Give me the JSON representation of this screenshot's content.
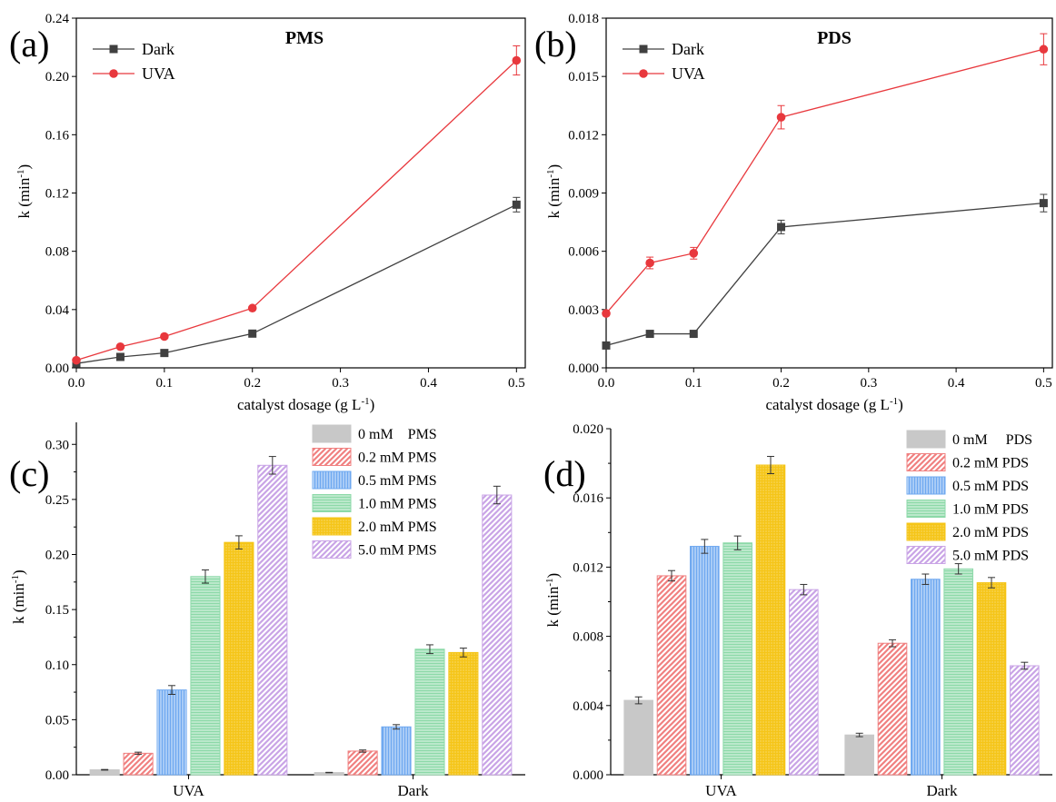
{
  "chart_data": [
    {
      "id": "a",
      "type": "line",
      "panel_label": "(a)",
      "title": "PMS",
      "xlabel": "catalyst dosage (g L",
      "xlabel_sup": "-1",
      "xlabel_end": ")",
      "ylabel": "k (min",
      "ylabel_sup": "-1",
      "ylabel_end": ")",
      "xlim": [
        0,
        0.51
      ],
      "ylim": [
        0,
        0.24
      ],
      "xticks": [
        0.0,
        0.1,
        0.2,
        0.3,
        0.4,
        0.5
      ],
      "xtick_labels": [
        "0.0",
        "0.1",
        "0.2",
        "0.3",
        "0.4",
        "0.5"
      ],
      "yticks": [
        0.0,
        0.04,
        0.08,
        0.12,
        0.16,
        0.2,
        0.24
      ],
      "ytick_labels": [
        "0.00",
        "0.04",
        "0.08",
        "0.12",
        "0.16",
        "0.20",
        "0.24"
      ],
      "legend_position": "top-left",
      "series": [
        {
          "name": "Dark",
          "color": "#404040",
          "marker": "square",
          "x": [
            0,
            0.05,
            0.1,
            0.2,
            0.5
          ],
          "y": [
            0.003,
            0.0075,
            0.0102,
            0.0235,
            0.112
          ],
          "err": [
            0.0004,
            0.0005,
            0.0006,
            0.0012,
            0.005
          ]
        },
        {
          "name": "UVA",
          "color": "#e8383d",
          "marker": "circle",
          "x": [
            0,
            0.05,
            0.1,
            0.2,
            0.5
          ],
          "y": [
            0.0052,
            0.0145,
            0.0215,
            0.041,
            0.211
          ],
          "err": [
            0.0004,
            0.0006,
            0.0007,
            0.0012,
            0.01
          ]
        }
      ]
    },
    {
      "id": "b",
      "type": "line",
      "panel_label": "(b)",
      "title": "PDS",
      "xlabel": "catalyst dosage (g L",
      "xlabel_sup": "-1",
      "xlabel_end": ")",
      "ylabel": "k (min",
      "ylabel_sup": "-1",
      "ylabel_end": ")",
      "xlim": [
        0,
        0.51
      ],
      "ylim": [
        0,
        0.018
      ],
      "xticks": [
        0.0,
        0.1,
        0.2,
        0.3,
        0.4,
        0.5
      ],
      "xtick_labels": [
        "0.0",
        "0.1",
        "0.2",
        "0.3",
        "0.4",
        "0.5"
      ],
      "yticks": [
        0.0,
        0.003,
        0.006,
        0.009,
        0.012,
        0.015,
        0.018
      ],
      "ytick_labels": [
        "0.000",
        "0.003",
        "0.006",
        "0.009",
        "0.012",
        "0.015",
        "0.018"
      ],
      "legend_position": "top-left",
      "series": [
        {
          "name": "Dark",
          "color": "#404040",
          "marker": "square",
          "x": [
            0,
            0.05,
            0.1,
            0.2,
            0.5
          ],
          "y": [
            0.00115,
            0.00175,
            0.00175,
            0.00725,
            0.00848
          ],
          "err": [
            8e-05,
            0.0001,
            0.0001,
            0.00035,
            0.00045
          ]
        },
        {
          "name": "UVA",
          "color": "#e8383d",
          "marker": "circle",
          "x": [
            0,
            0.05,
            0.1,
            0.2,
            0.5
          ],
          "y": [
            0.0028,
            0.0054,
            0.0059,
            0.0129,
            0.0164
          ],
          "err": [
            0.00012,
            0.0003,
            0.0003,
            0.0006,
            0.0008
          ]
        }
      ]
    },
    {
      "id": "c",
      "type": "bar",
      "panel_label": "(c)",
      "ylabel": "k (min",
      "ylabel_sup": "-1",
      "ylabel_end": ")",
      "ylim": [
        0,
        0.32
      ],
      "yticks": [
        0.0,
        0.05,
        0.1,
        0.15,
        0.2,
        0.25,
        0.3
      ],
      "ytick_labels": [
        "0.00",
        "0.05",
        "0.10",
        "0.15",
        "0.20",
        "0.25",
        "0.30"
      ],
      "categories": [
        "UVA",
        "Dark"
      ],
      "legend_position": "top-right",
      "series": [
        {
          "name": "0 mM    PMS",
          "color": "#c8c8c8",
          "pattern": "solid",
          "values": [
            0.0045,
            0.002
          ],
          "err": [
            0.0003,
            0.0002
          ]
        },
        {
          "name": "0.2 mM PMS",
          "color": "#f08080",
          "pattern": "diag",
          "values": [
            0.0195,
            0.0215
          ],
          "err": [
            0.001,
            0.001
          ]
        },
        {
          "name": "0.5 mM PMS",
          "color": "#6ea8f0",
          "pattern": "vert",
          "values": [
            0.077,
            0.0435
          ],
          "err": [
            0.004,
            0.002
          ]
        },
        {
          "name": "1.0 mM PMS",
          "color": "#8cd9a8",
          "pattern": "horiz",
          "values": [
            0.18,
            0.114
          ],
          "err": [
            0.006,
            0.004
          ]
        },
        {
          "name": "2.0 mM PMS",
          "color": "#f5c518",
          "pattern": "grid",
          "values": [
            0.211,
            0.111
          ],
          "err": [
            0.006,
            0.004
          ]
        },
        {
          "name": "5.0 mM PMS",
          "color": "#c9a4e6",
          "pattern": "diag",
          "values": [
            0.281,
            0.254
          ],
          "err": [
            0.008,
            0.008
          ]
        }
      ]
    },
    {
      "id": "d",
      "type": "bar",
      "panel_label": "(d)",
      "ylabel": "k (min",
      "ylabel_sup": "-1",
      "ylabel_end": ")",
      "ylim": [
        0,
        0.02
      ],
      "yticks": [
        0.0,
        0.004,
        0.008,
        0.012,
        0.016,
        0.02
      ],
      "ytick_labels": [
        "0.000",
        "0.004",
        "0.008",
        "0.012",
        "0.016",
        "0.020"
      ],
      "categories": [
        "UVA",
        "Dark"
      ],
      "legend_position": "top-right",
      "series": [
        {
          "name": "0 mM     PDS",
          "color": "#c8c8c8",
          "pattern": "solid",
          "values": [
            0.0043,
            0.0023
          ],
          "err": [
            0.0002,
            0.0001
          ]
        },
        {
          "name": "0.2 mM PDS",
          "color": "#f08080",
          "pattern": "diag",
          "values": [
            0.0115,
            0.0076
          ],
          "err": [
            0.0003,
            0.0002
          ]
        },
        {
          "name": "0.5 mM PDS",
          "color": "#6ea8f0",
          "pattern": "vert",
          "values": [
            0.0132,
            0.0113
          ],
          "err": [
            0.0004,
            0.0003
          ]
        },
        {
          "name": "1.0 mM PDS",
          "color": "#8cd9a8",
          "pattern": "horiz",
          "values": [
            0.0134,
            0.0119
          ],
          "err": [
            0.0004,
            0.0003
          ]
        },
        {
          "name": "2.0 mM PDS",
          "color": "#f5c518",
          "pattern": "grid",
          "values": [
            0.0179,
            0.0111
          ],
          "err": [
            0.0005,
            0.0003
          ]
        },
        {
          "name": "5.0 mM PDS",
          "color": "#c9a4e6",
          "pattern": "diag",
          "values": [
            0.0107,
            0.0063
          ],
          "err": [
            0.0003,
            0.0002
          ]
        }
      ]
    }
  ]
}
